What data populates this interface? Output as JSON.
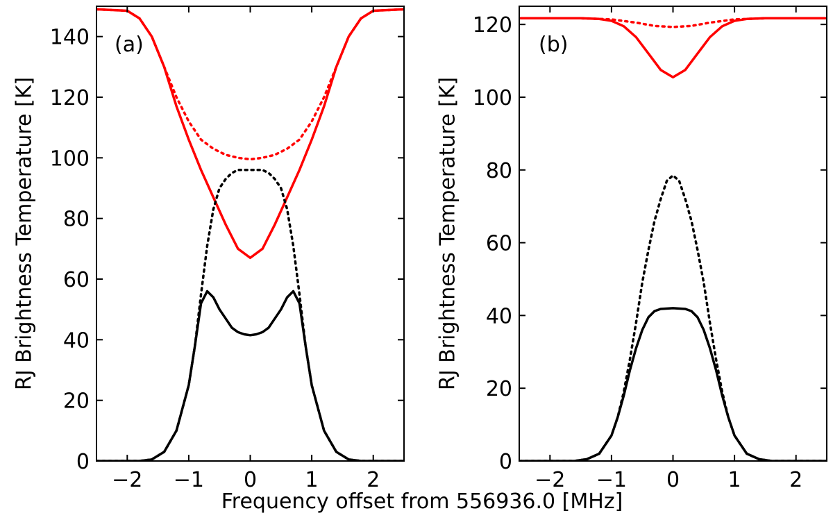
{
  "figure": {
    "xlabel": "Frequency offset from 556936.0 [MHz]"
  },
  "colors": {
    "red": "#ff0000",
    "black": "#000000"
  },
  "chart_data": [
    {
      "type": "line",
      "panel_label": "(a)",
      "ylabel": "RJ Brightness Temperature [K]",
      "xlim": [
        -2.5,
        2.5
      ],
      "ylim": [
        0,
        150
      ],
      "xticks": [
        -2,
        -1,
        0,
        1,
        2
      ],
      "xtick_labels": [
        "−2",
        "−1",
        "0",
        "1",
        "2"
      ],
      "yticks": [
        0,
        20,
        40,
        60,
        80,
        100,
        120,
        140
      ],
      "ytick_labels": [
        "0",
        "20",
        "40",
        "60",
        "80",
        "100",
        "120",
        "140"
      ],
      "series": [
        {
          "name": "red-solid",
          "color": "#ff0000",
          "style": "solid",
          "x": [
            -2.5,
            -2.0,
            -1.8,
            -1.6,
            -1.4,
            -1.2,
            -1.0,
            -0.8,
            -0.6,
            -0.4,
            -0.2,
            0.0,
            0.2,
            0.4,
            0.6,
            0.8,
            1.0,
            1.2,
            1.4,
            1.6,
            1.8,
            2.0,
            2.5
          ],
          "y": [
            149,
            148.5,
            146,
            140,
            130,
            117,
            106,
            96,
            87,
            78,
            70,
            67,
            70,
            78,
            87,
            96,
            106,
            117,
            130,
            140,
            146,
            148.5,
            149
          ]
        },
        {
          "name": "red-dotted",
          "color": "#ff0000",
          "style": "dotted",
          "x": [
            -2.5,
            -2.0,
            -1.8,
            -1.6,
            -1.4,
            -1.2,
            -1.0,
            -0.8,
            -0.6,
            -0.4,
            -0.2,
            0.0,
            0.2,
            0.4,
            0.6,
            0.8,
            1.0,
            1.2,
            1.4,
            1.6,
            1.8,
            2.0,
            2.5
          ],
          "y": [
            149,
            148.5,
            146,
            140,
            130,
            120,
            112,
            106,
            103,
            101,
            100,
            99.5,
            100,
            101,
            103,
            106,
            112,
            120,
            130,
            140,
            146,
            148.5,
            149
          ]
        },
        {
          "name": "black-dotted",
          "color": "#000000",
          "style": "dotted",
          "x": [
            -2.5,
            -1.8,
            -1.6,
            -1.4,
            -1.2,
            -1.0,
            -0.9,
            -0.8,
            -0.7,
            -0.6,
            -0.5,
            -0.4,
            -0.3,
            -0.2,
            0.0,
            0.2,
            0.3,
            0.4,
            0.5,
            0.6,
            0.7,
            0.8,
            0.9,
            1.0,
            1.2,
            1.4,
            1.6,
            1.8,
            2.5
          ],
          "y": [
            0,
            0,
            0.5,
            3,
            10,
            25,
            38,
            55,
            71,
            83,
            90,
            93,
            95,
            96,
            96,
            96,
            95,
            93,
            90,
            83,
            71,
            55,
            38,
            25,
            10,
            3,
            0.5,
            0,
            0
          ]
        },
        {
          "name": "black-solid",
          "color": "#000000",
          "style": "solid",
          "x": [
            -2.5,
            -1.8,
            -1.6,
            -1.4,
            -1.2,
            -1.0,
            -0.9,
            -0.8,
            -0.7,
            -0.6,
            -0.5,
            -0.4,
            -0.3,
            -0.2,
            -0.1,
            0.0,
            0.1,
            0.2,
            0.3,
            0.4,
            0.5,
            0.6,
            0.7,
            0.8,
            0.9,
            1.0,
            1.2,
            1.4,
            1.6,
            1.8,
            2.5
          ],
          "y": [
            0,
            0,
            0.5,
            3,
            10,
            25,
            38,
            52,
            56,
            54,
            50,
            47,
            44,
            42.5,
            41.8,
            41.5,
            41.8,
            42.5,
            44,
            47,
            50,
            54,
            56,
            52,
            38,
            25,
            10,
            3,
            0.5,
            0,
            0
          ]
        }
      ]
    },
    {
      "type": "line",
      "panel_label": "(b)",
      "ylabel": "RJ Brightness Temperature [K]",
      "xlim": [
        -2.5,
        2.5
      ],
      "ylim": [
        0,
        125
      ],
      "xticks": [
        -2,
        -1,
        0,
        1,
        2
      ],
      "xtick_labels": [
        "−2",
        "−1",
        "0",
        "1",
        "2"
      ],
      "yticks": [
        0,
        20,
        40,
        60,
        80,
        100,
        120
      ],
      "ytick_labels": [
        "0",
        "20",
        "40",
        "60",
        "80",
        "100",
        "120"
      ],
      "series": [
        {
          "name": "red-solid",
          "color": "#ff0000",
          "style": "solid",
          "x": [
            -2.5,
            -1.5,
            -1.2,
            -1.0,
            -0.8,
            -0.6,
            -0.4,
            -0.2,
            0.0,
            0.2,
            0.4,
            0.6,
            0.8,
            1.0,
            1.2,
            1.5,
            2.5
          ],
          "y": [
            121.7,
            121.7,
            121.5,
            121,
            119.5,
            116.5,
            112,
            107.5,
            105.5,
            107.5,
            112,
            116.5,
            119.5,
            121,
            121.5,
            121.7,
            121.7
          ]
        },
        {
          "name": "red-dotted",
          "color": "#ff0000",
          "style": "dotted",
          "x": [
            -2.5,
            -1.5,
            -1.0,
            -0.6,
            -0.3,
            0.0,
            0.3,
            0.6,
            1.0,
            1.5,
            2.5
          ],
          "y": [
            121.7,
            121.7,
            121.4,
            120.5,
            119.6,
            119.3,
            119.6,
            120.5,
            121.4,
            121.7,
            121.7
          ]
        },
        {
          "name": "black-dotted",
          "color": "#000000",
          "style": "dotted",
          "x": [
            -2.5,
            -1.6,
            -1.4,
            -1.2,
            -1.0,
            -0.9,
            -0.8,
            -0.7,
            -0.6,
            -0.5,
            -0.4,
            -0.3,
            -0.2,
            -0.1,
            0.0,
            0.1,
            0.2,
            0.3,
            0.4,
            0.5,
            0.6,
            0.7,
            0.8,
            0.9,
            1.0,
            1.2,
            1.4,
            1.6,
            2.5
          ],
          "y": [
            0,
            0,
            0.5,
            2,
            7,
            12,
            19,
            28,
            38,
            49,
            58,
            66,
            72,
            77,
            78.5,
            77,
            72,
            66,
            58,
            49,
            38,
            28,
            19,
            12,
            7,
            2,
            0.5,
            0,
            0
          ]
        },
        {
          "name": "black-solid",
          "color": "#000000",
          "style": "solid",
          "x": [
            -2.5,
            -1.6,
            -1.4,
            -1.2,
            -1.0,
            -0.9,
            -0.8,
            -0.7,
            -0.6,
            -0.5,
            -0.4,
            -0.3,
            -0.2,
            0.0,
            0.2,
            0.3,
            0.4,
            0.5,
            0.6,
            0.7,
            0.8,
            0.9,
            1.0,
            1.2,
            1.4,
            1.6,
            2.5
          ],
          "y": [
            0,
            0,
            0.5,
            2,
            7,
            12,
            18,
            25,
            31,
            36,
            39.5,
            41.2,
            41.8,
            42,
            41.8,
            41.2,
            39.5,
            36,
            31,
            25,
            18,
            12,
            7,
            2,
            0.5,
            0,
            0
          ]
        }
      ]
    }
  ]
}
